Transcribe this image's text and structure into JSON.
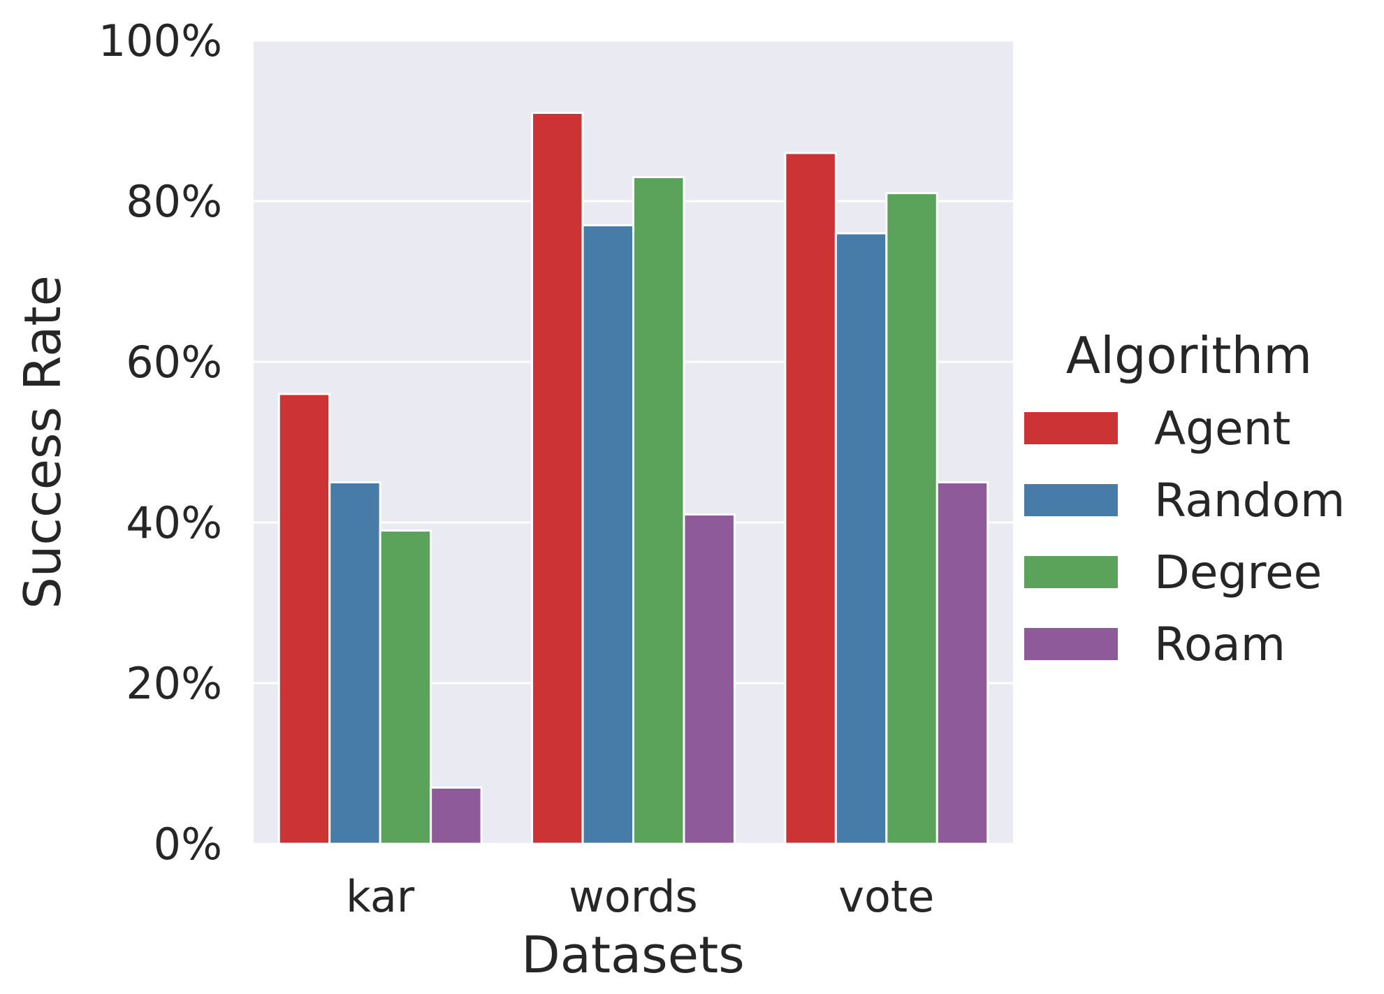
{
  "chart_data": {
    "type": "bar",
    "title": "",
    "xlabel": "Datasets",
    "ylabel": "Success Rate",
    "categories": [
      "kar",
      "words",
      "vote"
    ],
    "series": [
      {
        "name": "Agent",
        "color": "#cb3335",
        "values": [
          56,
          91,
          86
        ]
      },
      {
        "name": "Random",
        "color": "#477ba8",
        "values": [
          45,
          77,
          76
        ]
      },
      {
        "name": "Degree",
        "color": "#5ba35a",
        "values": [
          39,
          83,
          81
        ]
      },
      {
        "name": "Roam",
        "color": "#8f5a99",
        "values": [
          7,
          41,
          45
        ]
      }
    ],
    "ylim": [
      0,
      100
    ],
    "yticks": [
      "0%",
      "20%",
      "40%",
      "60%",
      "80%",
      "100%"
    ],
    "ytick_values": [
      0,
      20,
      40,
      60,
      80,
      100
    ],
    "grid": true,
    "background": "#eaeaf2",
    "legend": {
      "title": "Algorithm",
      "position": "right"
    }
  }
}
